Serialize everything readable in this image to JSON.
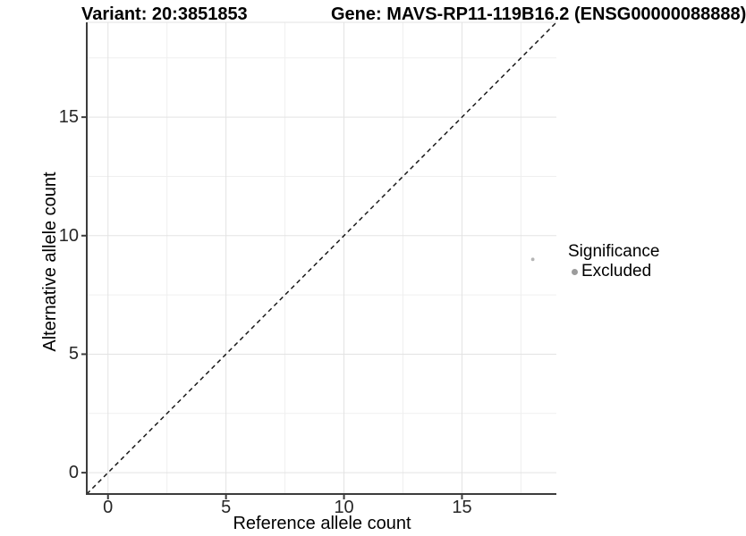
{
  "titles": {
    "variant": "Variant: 20:3851853",
    "gene": "Gene: MAVS-RP11-119B16.2 (ENSG00000088888)"
  },
  "legend": {
    "title": "Significance",
    "items": [
      {
        "label": "Excluded",
        "color": "#9c9c9c"
      }
    ]
  },
  "chart_data": {
    "type": "scatter",
    "title_left": "Variant: 20:3851853",
    "title_right": "Gene: MAVS-RP11-119B16.2 (ENSG00000088888)",
    "xlabel": "Reference allele count",
    "ylabel": "Alternative allele count",
    "xlim": [
      -0.9,
      19.0
    ],
    "ylim": [
      -0.9,
      19.0
    ],
    "x_ticks": [
      0,
      5,
      10,
      15
    ],
    "y_ticks": [
      0,
      5,
      10,
      15
    ],
    "x_minor_ticks": [
      2.5,
      7.5,
      12.5,
      17.5
    ],
    "y_minor_ticks": [
      2.5,
      7.5,
      12.5,
      17.5
    ],
    "grid": true,
    "legend_position": "right",
    "series": [
      {
        "name": "Excluded",
        "color": "#b5b5b5",
        "points": [
          {
            "x": 18,
            "y": 9
          }
        ]
      }
    ],
    "reference_line": {
      "type": "identity",
      "slope": 1,
      "intercept": 0,
      "style": "dashed",
      "color": "#1a1a1a"
    },
    "colors": {
      "grid_major": "#e3e3e3",
      "grid_minor": "#efefef",
      "axis_line": "#3c3c3c",
      "tick_text": "#262626",
      "point": "#b5b5b5",
      "legend_point": "#9c9c9c"
    }
  }
}
